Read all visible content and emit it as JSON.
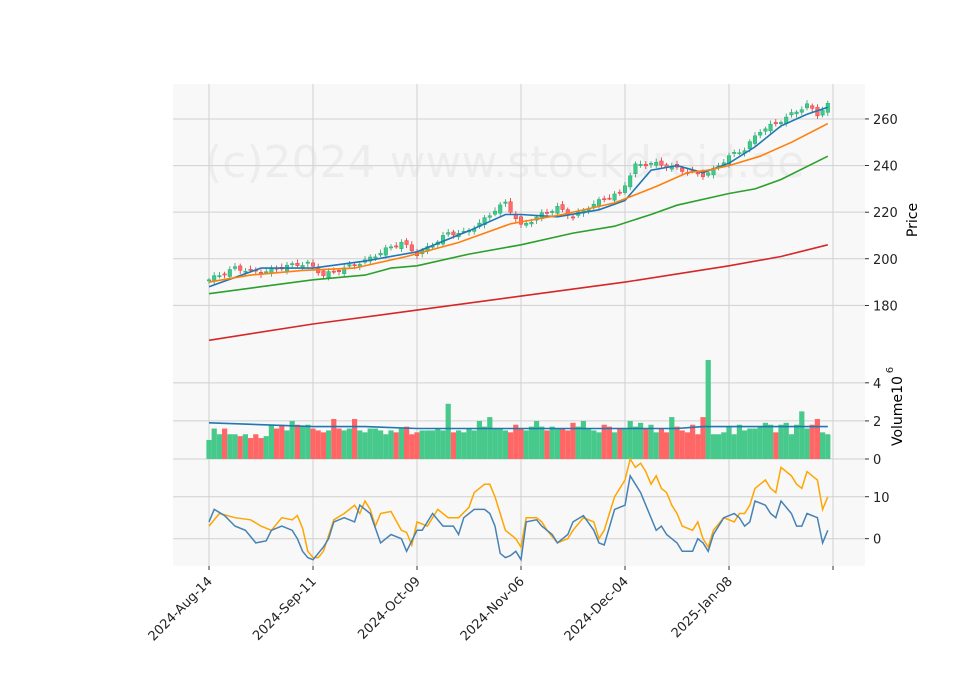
{
  "chart_data": {
    "type": "candlestick",
    "watermark": "(c)2024 www.stockdroid.ae",
    "price_panel": {
      "ylabel": "Price",
      "ylim": [
        160,
        275
      ],
      "yticks": [
        180,
        200,
        220,
        240,
        260
      ],
      "legend": "none",
      "grid": true
    },
    "volume_panel": {
      "ylabel": "Volume",
      "ylabel_exp": "6",
      "ylim": [
        0,
        5.2
      ],
      "yticks": [
        0,
        2,
        4
      ]
    },
    "indicator_panel": {
      "ylim": [
        -6.5,
        19
      ],
      "yticks": [
        0,
        10
      ]
    },
    "x_ticks": [
      {
        "label": "2024-Aug-14",
        "index": 0
      },
      {
        "label": "2024-Sep-11",
        "index": 20
      },
      {
        "label": "2024-Oct-09",
        "index": 40
      },
      {
        "label": "2024-Nov-06",
        "index": 60
      },
      {
        "label": "2024-Dec-04",
        "index": 80
      },
      {
        "label": "2025-Jan-08",
        "index": 100
      },
      {
        "label": "",
        "index": 120
      }
    ],
    "n_sessions": 120,
    "close_anchors": [
      [
        0,
        191
      ],
      [
        5,
        196
      ],
      [
        10,
        194
      ],
      [
        15,
        197
      ],
      [
        19,
        198
      ],
      [
        22,
        193
      ],
      [
        26,
        196
      ],
      [
        30,
        199
      ],
      [
        34,
        204
      ],
      [
        37,
        207
      ],
      [
        40,
        202
      ],
      [
        43,
        206
      ],
      [
        46,
        211
      ],
      [
        49,
        211
      ],
      [
        52,
        215
      ],
      [
        55,
        221
      ],
      [
        57,
        224
      ],
      [
        60,
        214
      ],
      [
        64,
        219
      ],
      [
        67,
        222
      ],
      [
        70,
        218
      ],
      [
        73,
        222
      ],
      [
        76,
        226
      ],
      [
        79,
        228
      ],
      [
        82,
        240
      ],
      [
        85,
        241
      ],
      [
        88,
        240
      ],
      [
        91,
        238
      ],
      [
        95,
        236
      ],
      [
        97,
        238
      ],
      [
        100,
        244
      ],
      [
        103,
        247
      ],
      [
        106,
        255
      ],
      [
        109,
        258
      ],
      [
        112,
        262
      ],
      [
        115,
        266
      ],
      [
        117,
        262
      ],
      [
        119,
        266
      ]
    ],
    "ma_lines": [
      {
        "name": "MA1",
        "color": "#1f77b4",
        "points": [
          [
            0,
            188
          ],
          [
            10,
            196
          ],
          [
            20,
            196
          ],
          [
            30,
            199
          ],
          [
            40,
            203
          ],
          [
            50,
            212
          ],
          [
            57,
            219
          ],
          [
            60,
            219
          ],
          [
            67,
            218
          ],
          [
            75,
            221
          ],
          [
            80,
            225
          ],
          [
            85,
            238
          ],
          [
            90,
            240
          ],
          [
            95,
            237
          ],
          [
            100,
            241
          ],
          [
            105,
            248
          ],
          [
            110,
            257
          ],
          [
            115,
            262
          ],
          [
            119,
            265
          ]
        ]
      },
      {
        "name": "MA2",
        "color": "#ff7f0e",
        "points": [
          [
            0,
            190
          ],
          [
            8,
            193
          ],
          [
            18,
            195
          ],
          [
            28,
            196
          ],
          [
            38,
            201
          ],
          [
            48,
            207
          ],
          [
            58,
            215
          ],
          [
            68,
            219
          ],
          [
            78,
            224
          ],
          [
            86,
            231
          ],
          [
            92,
            237
          ],
          [
            96,
            238
          ],
          [
            100,
            240
          ],
          [
            106,
            244
          ],
          [
            112,
            250
          ],
          [
            119,
            258
          ]
        ]
      },
      {
        "name": "MA3",
        "color": "#2ca02c",
        "points": [
          [
            0,
            185
          ],
          [
            10,
            188
          ],
          [
            20,
            191
          ],
          [
            30,
            193
          ],
          [
            35,
            196
          ],
          [
            40,
            197
          ],
          [
            50,
            202
          ],
          [
            60,
            206
          ],
          [
            70,
            211
          ],
          [
            78,
            214
          ],
          [
            85,
            219
          ],
          [
            90,
            223
          ],
          [
            100,
            228
          ],
          [
            105,
            230
          ],
          [
            110,
            234
          ],
          [
            119,
            244
          ]
        ]
      },
      {
        "name": "MA4",
        "color": "#d62728",
        "points": [
          [
            0,
            165
          ],
          [
            20,
            172
          ],
          [
            40,
            178
          ],
          [
            60,
            184
          ],
          [
            80,
            190
          ],
          [
            100,
            197
          ],
          [
            110,
            201
          ],
          [
            119,
            206
          ]
        ]
      }
    ],
    "volume": [
      1.0,
      1.6,
      1.3,
      1.6,
      1.3,
      1.3,
      1.2,
      1.3,
      1.1,
      1.3,
      1.1,
      1.2,
      1.8,
      1.6,
      1.8,
      1.5,
      2.0,
      1.8,
      1.7,
      1.8,
      1.6,
      1.5,
      1.4,
      1.5,
      2.1,
      1.6,
      1.5,
      1.6,
      2.1,
      1.5,
      1.4,
      1.6,
      1.6,
      1.5,
      1.3,
      1.5,
      1.4,
      1.6,
      1.7,
      1.3,
      1.4,
      1.5,
      1.5,
      1.5,
      1.6,
      1.5,
      2.9,
      1.4,
      1.5,
      1.4,
      1.6,
      1.5,
      2.0,
      1.7,
      2.2,
      1.6,
      1.6,
      1.5,
      1.4,
      1.8,
      1.6,
      1.5,
      1.7,
      2.0,
      1.7,
      1.5,
      1.7,
      1.6,
      1.6,
      1.5,
      1.9,
      1.7,
      2.0,
      1.6,
      1.5,
      1.4,
      1.8,
      1.7,
      1.4,
      1.6,
      1.6,
      2.0,
      1.7,
      1.9,
      1.6,
      1.8,
      1.4,
      1.6,
      1.4,
      2.2,
      1.7,
      1.5,
      1.4,
      1.8,
      1.3,
      2.2,
      5.2,
      1.3,
      1.3,
      1.4,
      1.7,
      1.3,
      1.8,
      1.5,
      1.6,
      1.6,
      1.7,
      1.9,
      1.8,
      1.4,
      1.8,
      1.9,
      1.3,
      1.8,
      2.5,
      1.6,
      1.8,
      2.1,
      1.4,
      1.3
    ],
    "volume_ma": {
      "color": "#1f77b4",
      "points": [
        [
          0,
          1.9
        ],
        [
          10,
          1.8
        ],
        [
          20,
          1.7
        ],
        [
          30,
          1.7
        ],
        [
          40,
          1.6
        ],
        [
          50,
          1.6
        ],
        [
          60,
          1.6
        ],
        [
          70,
          1.6
        ],
        [
          80,
          1.6
        ],
        [
          90,
          1.6
        ],
        [
          95,
          1.7
        ],
        [
          100,
          1.7
        ],
        [
          110,
          1.7
        ],
        [
          119,
          1.7
        ]
      ]
    },
    "indicator_lines": [
      {
        "name": "line1",
        "color": "#ffa500",
        "points": [
          [
            0,
            3
          ],
          [
            2,
            6
          ],
          [
            5,
            5
          ],
          [
            8,
            4.5
          ],
          [
            10,
            3
          ],
          [
            12,
            2
          ],
          [
            14,
            5
          ],
          [
            16,
            4.5
          ],
          [
            17,
            5.5
          ],
          [
            18,
            2.5
          ],
          [
            19,
            -3
          ],
          [
            20,
            -4.5
          ],
          [
            21,
            -4.5
          ],
          [
            22,
            -3
          ],
          [
            24,
            4.5
          ],
          [
            26,
            6
          ],
          [
            28,
            8
          ],
          [
            29,
            6
          ],
          [
            30,
            9
          ],
          [
            31,
            7
          ],
          [
            32,
            3
          ],
          [
            33,
            6
          ],
          [
            35,
            6.5
          ],
          [
            37,
            2
          ],
          [
            38,
            1.5
          ],
          [
            39,
            -1.5
          ],
          [
            40,
            4
          ],
          [
            42,
            3
          ],
          [
            44,
            7
          ],
          [
            46,
            5
          ],
          [
            48,
            5
          ],
          [
            50,
            7.5
          ],
          [
            51,
            11
          ],
          [
            53,
            13
          ],
          [
            54,
            13
          ],
          [
            55,
            10
          ],
          [
            56,
            6
          ],
          [
            57,
            2
          ],
          [
            59,
            0
          ],
          [
            60,
            -2
          ],
          [
            61,
            5
          ],
          [
            63,
            5
          ],
          [
            64,
            4
          ],
          [
            65,
            2
          ],
          [
            67,
            -1
          ],
          [
            69,
            0
          ],
          [
            70,
            2
          ],
          [
            72,
            5
          ],
          [
            74,
            4
          ],
          [
            75,
            0
          ],
          [
            76,
            2
          ],
          [
            78,
            10
          ],
          [
            80,
            14
          ],
          [
            81,
            19
          ],
          [
            82,
            17
          ],
          [
            83,
            18
          ],
          [
            84,
            16
          ],
          [
            85,
            13
          ],
          [
            86,
            15
          ],
          [
            87,
            12
          ],
          [
            88,
            11
          ],
          [
            89,
            8
          ],
          [
            90,
            6
          ],
          [
            91,
            3
          ],
          [
            93,
            2
          ],
          [
            94,
            4
          ],
          [
            95,
            0
          ],
          [
            96,
            -2
          ],
          [
            97,
            2
          ],
          [
            99,
            5
          ],
          [
            101,
            4
          ],
          [
            102,
            6
          ],
          [
            103,
            6
          ],
          [
            104,
            8
          ],
          [
            105,
            12
          ],
          [
            107,
            14
          ],
          [
            108,
            12
          ],
          [
            109,
            11
          ],
          [
            110,
            17
          ],
          [
            112,
            15
          ],
          [
            113,
            13
          ],
          [
            114,
            12
          ],
          [
            115,
            16
          ],
          [
            117,
            14
          ],
          [
            118,
            7
          ],
          [
            119,
            10
          ]
        ]
      },
      {
        "name": "line2",
        "color": "#4682b4",
        "points": [
          [
            0,
            4
          ],
          [
            1,
            7
          ],
          [
            3,
            5.5
          ],
          [
            5,
            3
          ],
          [
            7,
            2
          ],
          [
            9,
            -1
          ],
          [
            11,
            -0.5
          ],
          [
            12,
            2
          ],
          [
            14,
            3
          ],
          [
            16,
            2
          ],
          [
            17,
            0
          ],
          [
            18,
            -3
          ],
          [
            19,
            -4.5
          ],
          [
            20,
            -5
          ],
          [
            22,
            -2
          ],
          [
            23,
            0
          ],
          [
            24,
            4
          ],
          [
            26,
            5
          ],
          [
            28,
            4
          ],
          [
            29,
            8
          ],
          [
            31,
            6
          ],
          [
            33,
            -1
          ],
          [
            35,
            1
          ],
          [
            37,
            0
          ],
          [
            38,
            -3
          ],
          [
            40,
            2
          ],
          [
            41,
            2
          ],
          [
            43,
            6
          ],
          [
            45,
            3
          ],
          [
            47,
            3
          ],
          [
            48,
            1
          ],
          [
            49,
            5
          ],
          [
            51,
            7
          ],
          [
            53,
            7
          ],
          [
            54,
            6
          ],
          [
            55,
            3
          ],
          [
            56,
            -3.5
          ],
          [
            57,
            -4.5
          ],
          [
            58,
            -4
          ],
          [
            59,
            -3
          ],
          [
            60,
            -5
          ],
          [
            61,
            4
          ],
          [
            63,
            4.5
          ],
          [
            64,
            3
          ],
          [
            66,
            1
          ],
          [
            67,
            -1
          ],
          [
            69,
            1
          ],
          [
            70,
            4
          ],
          [
            72,
            5.5
          ],
          [
            74,
            2
          ],
          [
            75,
            -1
          ],
          [
            76,
            -1.5
          ],
          [
            78,
            7
          ],
          [
            80,
            8
          ],
          [
            81,
            15
          ],
          [
            82,
            13
          ],
          [
            83,
            11
          ],
          [
            84,
            8
          ],
          [
            86,
            2
          ],
          [
            87,
            3
          ],
          [
            88,
            1
          ],
          [
            89,
            0
          ],
          [
            90,
            -1
          ],
          [
            91,
            -3
          ],
          [
            93,
            -3
          ],
          [
            94,
            0
          ],
          [
            95,
            -1
          ],
          [
            96,
            -3
          ],
          [
            97,
            1
          ],
          [
            99,
            5
          ],
          [
            101,
            6
          ],
          [
            102,
            5
          ],
          [
            103,
            3
          ],
          [
            104,
            4
          ],
          [
            105,
            9
          ],
          [
            107,
            8
          ],
          [
            108,
            6
          ],
          [
            109,
            5
          ],
          [
            110,
            9
          ],
          [
            112,
            6
          ],
          [
            113,
            3
          ],
          [
            114,
            3
          ],
          [
            115,
            6
          ],
          [
            117,
            5
          ],
          [
            118,
            -1
          ],
          [
            119,
            2
          ]
        ]
      }
    ]
  }
}
